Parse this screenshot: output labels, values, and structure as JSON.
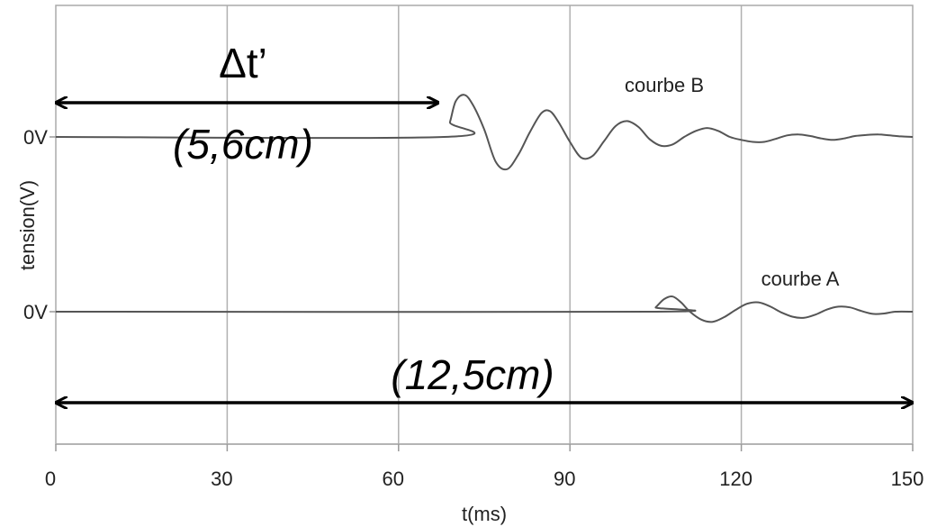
{
  "chart_data": {
    "type": "line",
    "xlabel": "t(ms)",
    "ylabel": "tension(V)",
    "xlim": [
      0,
      150
    ],
    "x_ticks": [
      0,
      30,
      60,
      90,
      120,
      150
    ],
    "grid": "vertical",
    "series": [
      {
        "name": "courbe B",
        "baseline_label": "0V",
        "signal_start_ms": 68,
        "color": "#555555",
        "x": [
          0,
          68,
          69,
          70,
          71.5,
          73,
          75,
          77,
          79,
          81,
          83,
          85,
          86.5,
          88,
          90,
          92,
          94,
          96,
          98,
          100,
          102,
          104,
          106,
          108,
          110,
          112,
          114,
          116,
          118,
          120,
          122,
          124,
          126,
          128,
          130,
          132,
          134,
          136,
          138,
          140,
          142,
          144,
          146,
          148,
          150
        ],
        "y": [
          0,
          0,
          0.3,
          0.72,
          0.85,
          0.65,
          0.15,
          -0.5,
          -0.65,
          -0.35,
          0.1,
          0.48,
          0.52,
          0.3,
          -0.1,
          -0.42,
          -0.38,
          -0.08,
          0.22,
          0.32,
          0.2,
          -0.05,
          -0.18,
          -0.15,
          0.0,
          0.12,
          0.18,
          0.12,
          0.0,
          -0.06,
          -0.1,
          -0.1,
          -0.04,
          0.03,
          0.05,
          0.02,
          -0.03,
          -0.06,
          -0.03,
          0.02,
          0.04,
          0.05,
          0.03,
          0.01,
          0.0
        ]
      },
      {
        "name": "courbe A",
        "baseline_label": "0V",
        "signal_start_ms": 104,
        "color": "#555555",
        "x": [
          0,
          104,
          105,
          106.5,
          108,
          109.5,
          111,
          113,
          115,
          117,
          119,
          121,
          123,
          125,
          127,
          129,
          131,
          133,
          135,
          137,
          139,
          141,
          143,
          145,
          147,
          150
        ],
        "y": [
          0,
          0,
          0.12,
          0.35,
          0.42,
          0.25,
          0.0,
          -0.22,
          -0.28,
          -0.15,
          0.05,
          0.22,
          0.26,
          0.15,
          -0.02,
          -0.14,
          -0.17,
          -0.08,
          0.06,
          0.14,
          0.12,
          0.02,
          -0.06,
          -0.05,
          0.0,
          0.0
        ]
      }
    ],
    "annotations": [
      {
        "id": "delta_t_prime",
        "label": "Δt’",
        "measure": "(5,6cm)",
        "from_ms": 0,
        "to_ms": 67
      },
      {
        "id": "full_width",
        "label": "",
        "measure": "(12,5cm)",
        "from_ms": 0,
        "to_ms": 150
      }
    ]
  }
}
